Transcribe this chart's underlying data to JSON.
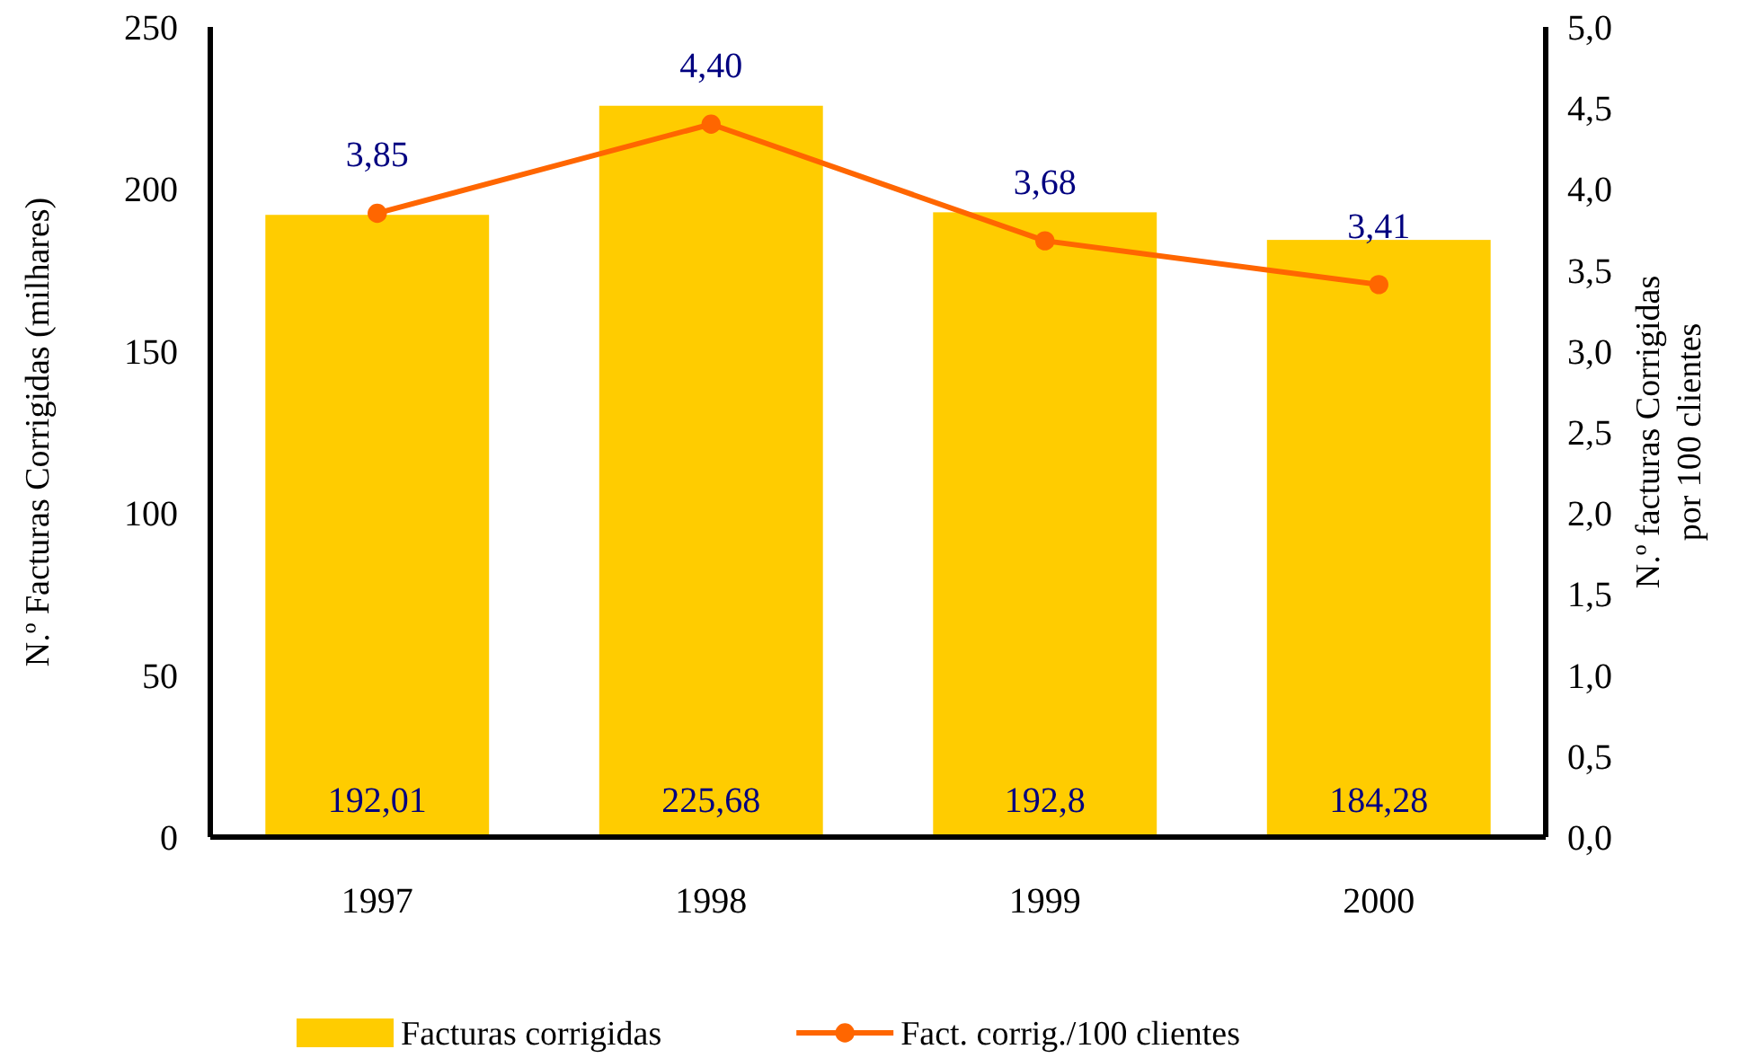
{
  "chart_data": {
    "type": "bar",
    "categories": [
      "1997",
      "1998",
      "1999",
      "2000"
    ],
    "ylabel": "N.º Facturas Corrigidas (milhares)",
    "y2label": "N.º facturas Corrigidas\npor 100 clientes",
    "ylim": [
      0,
      250
    ],
    "yticks": [
      0,
      50,
      100,
      150,
      200,
      250
    ],
    "y2lim": [
      0,
      5
    ],
    "y2ticks": [
      {
        "value": 0,
        "label": "0,0"
      },
      {
        "value": 0.5,
        "label": "0,5"
      },
      {
        "value": 1,
        "label": "1,0"
      },
      {
        "value": 1.5,
        "label": "1,5"
      },
      {
        "value": 2,
        "label": "2,0"
      },
      {
        "value": 2.5,
        "label": "2,5"
      },
      {
        "value": 3,
        "label": "3,0"
      },
      {
        "value": 3.5,
        "label": "3,5"
      },
      {
        "value": 4,
        "label": "4,0"
      },
      {
        "value": 4.5,
        "label": "4,5"
      },
      {
        "value": 5,
        "label": "5,0"
      }
    ],
    "series": [
      {
        "name": "Facturas corrigidas",
        "color": "#ffcc00",
        "values": [
          192.01,
          225.68,
          192.8,
          184.28
        ],
        "value_labels": [
          "192,01",
          "225,68",
          "192,8",
          "184,28"
        ]
      },
      {
        "name": "Fact. corrig./100 clientes",
        "type": "line",
        "axis": "y2",
        "color": "#ff6600",
        "values": [
          3.85,
          4.4,
          3.68,
          3.41
        ],
        "value_labels": [
          "3,85",
          "4,40",
          "3,68",
          "3,41"
        ]
      }
    ],
    "marker": "circle",
    "legend": "bottom",
    "grid": false
  }
}
